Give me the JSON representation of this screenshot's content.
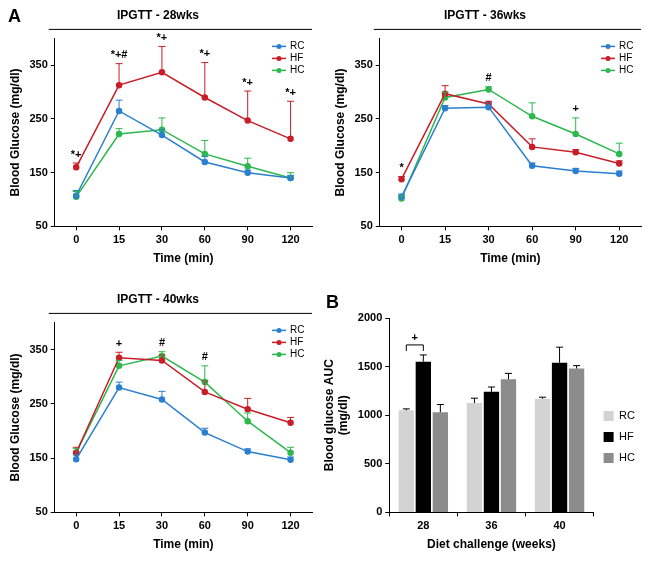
{
  "chart_data": [
    {
      "type": "line",
      "panel": "A",
      "title": "IPGTT - 28wks",
      "x_label": "Time (min)",
      "y_label": "Blood Glucose (mg/dl)",
      "categories": [
        "0",
        "15",
        "30",
        "60",
        "90",
        "120"
      ],
      "series": [
        {
          "name": "RC",
          "color": "#2a7fcf",
          "values": [
            107,
            265,
            220,
            170,
            150,
            140
          ],
          "errors": [
            10,
            20,
            10,
            10,
            5,
            5
          ]
        },
        {
          "name": "HF",
          "color": "#c81e28",
          "values": [
            160,
            313,
            337,
            290,
            247,
            213
          ],
          "errors": [
            8,
            40,
            48,
            65,
            55,
            70
          ]
        },
        {
          "name": "HC",
          "color": "#2db84d",
          "values": [
            105,
            222,
            230,
            185,
            162,
            140
          ],
          "errors": [
            10,
            10,
            22,
            25,
            15,
            10
          ]
        }
      ],
      "ylim": [
        50,
        400
      ],
      "yticks": [
        50,
        150,
        250,
        350
      ],
      "grid": false,
      "legend": "upper right",
      "annotations": [
        {
          "x": "0",
          "text": "*+"
        },
        {
          "x": "15",
          "text": "*+#"
        },
        {
          "x": "30",
          "text": "*+"
        },
        {
          "x": "60",
          "text": "*+"
        },
        {
          "x": "90",
          "text": "*+"
        },
        {
          "x": "120",
          "text": "*+"
        }
      ]
    },
    {
      "type": "line",
      "title": "IPGTT - 36wks",
      "x_label": "Time (min)",
      "y_label": "Blood Glucose (mg/dl)",
      "categories": [
        "0",
        "15",
        "30",
        "60",
        "90",
        "120"
      ],
      "series": [
        {
          "name": "RC",
          "color": "#2a7fcf",
          "values": [
            105,
            270,
            272,
            163,
            153,
            148
          ],
          "errors": [
            5,
            5,
            8,
            5,
            5,
            5
          ]
        },
        {
          "name": "HF",
          "color": "#c81e28",
          "values": [
            138,
            297,
            278,
            198,
            188,
            167
          ],
          "errors": [
            5,
            15,
            5,
            15,
            5,
            5
          ]
        },
        {
          "name": "HC",
          "color": "#2db84d",
          "values": [
            102,
            290,
            305,
            255,
            222,
            185
          ],
          "errors": [
            5,
            10,
            5,
            25,
            30,
            20
          ]
        }
      ],
      "ylim": [
        50,
        400
      ],
      "yticks": [
        50,
        150,
        250,
        350
      ],
      "grid": false,
      "legend": "upper right",
      "annotations": [
        {
          "x": "0",
          "text": "*"
        },
        {
          "x": "30",
          "text": "#"
        },
        {
          "x": "90",
          "text": "+"
        }
      ]
    },
    {
      "type": "line",
      "title": "IPGTT - 40wks",
      "x_label": "Time (min)",
      "y_label": "Blood Glucose (mg/dl)",
      "categories": [
        "0",
        "15",
        "30",
        "60",
        "90",
        "120"
      ],
      "series": [
        {
          "name": "RC",
          "color": "#2a7fcf",
          "values": [
            148,
            280,
            258,
            197,
            162,
            147
          ],
          "errors": [
            8,
            10,
            15,
            8,
            5,
            5
          ]
        },
        {
          "name": "HF",
          "color": "#c81e28",
          "values": [
            160,
            335,
            330,
            272,
            240,
            215
          ],
          "errors": [
            10,
            10,
            10,
            20,
            20,
            10
          ]
        },
        {
          "name": "HC",
          "color": "#2db84d",
          "values": [
            160,
            320,
            338,
            290,
            218,
            160
          ],
          "errors": [
            8,
            10,
            8,
            30,
            15,
            10
          ]
        }
      ],
      "ylim": [
        50,
        400
      ],
      "yticks": [
        50,
        150,
        250,
        350
      ],
      "grid": false,
      "legend": "upper right",
      "annotations": [
        {
          "x": "15",
          "text": "+"
        },
        {
          "x": "30",
          "text": "#"
        },
        {
          "x": "60",
          "text": "#"
        }
      ]
    },
    {
      "type": "bar",
      "panel": "B",
      "x_label": "Diet challenge (weeks)",
      "y_label": [
        "Blood glucose AUC",
        "(mg/dl)"
      ],
      "categories": [
        "28",
        "36",
        "40"
      ],
      "series": [
        {
          "name": "RC",
          "color": "#d3d3d3",
          "values": [
            1050,
            1125,
            1170
          ],
          "errors": [
            15,
            50,
            15
          ]
        },
        {
          "name": "HF",
          "color": "#000000",
          "values": [
            1550,
            1240,
            1540
          ],
          "errors": [
            70,
            50,
            160
          ]
        },
        {
          "name": "HC",
          "color": "#8c8c8c",
          "values": [
            1030,
            1370,
            1480
          ],
          "errors": [
            80,
            60,
            30
          ]
        }
      ],
      "ylim": [
        0,
        2000
      ],
      "yticks": [
        0,
        500,
        1000,
        1500,
        2000
      ],
      "grid": false,
      "legend": "right",
      "annotations": [
        {
          "x": "28",
          "text": "+",
          "between": [
            "RC",
            "HF"
          ]
        }
      ]
    }
  ]
}
